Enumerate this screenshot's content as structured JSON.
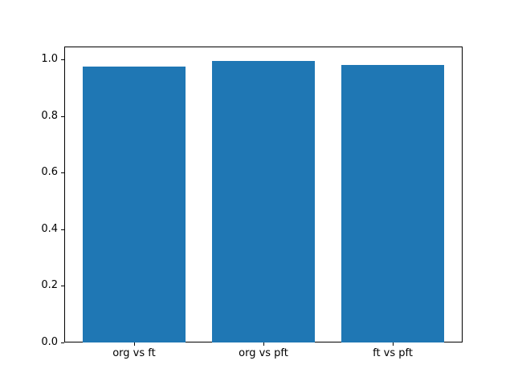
{
  "chart_data": {
    "type": "bar",
    "title": "",
    "xlabel": "",
    "ylabel": "",
    "categories": [
      "org vs ft",
      "org vs pft",
      "ft vs pft"
    ],
    "values": [
      0.975,
      0.995,
      0.98
    ],
    "bar_color": "#1f77b4",
    "ylim": [
      0.0,
      1.045
    ],
    "yticks": [
      0.0,
      0.2,
      0.4,
      0.6,
      0.8,
      1.0
    ],
    "ytick_label_format": "one_decimal",
    "grid": false,
    "legend": false,
    "background": "#ffffff"
  }
}
